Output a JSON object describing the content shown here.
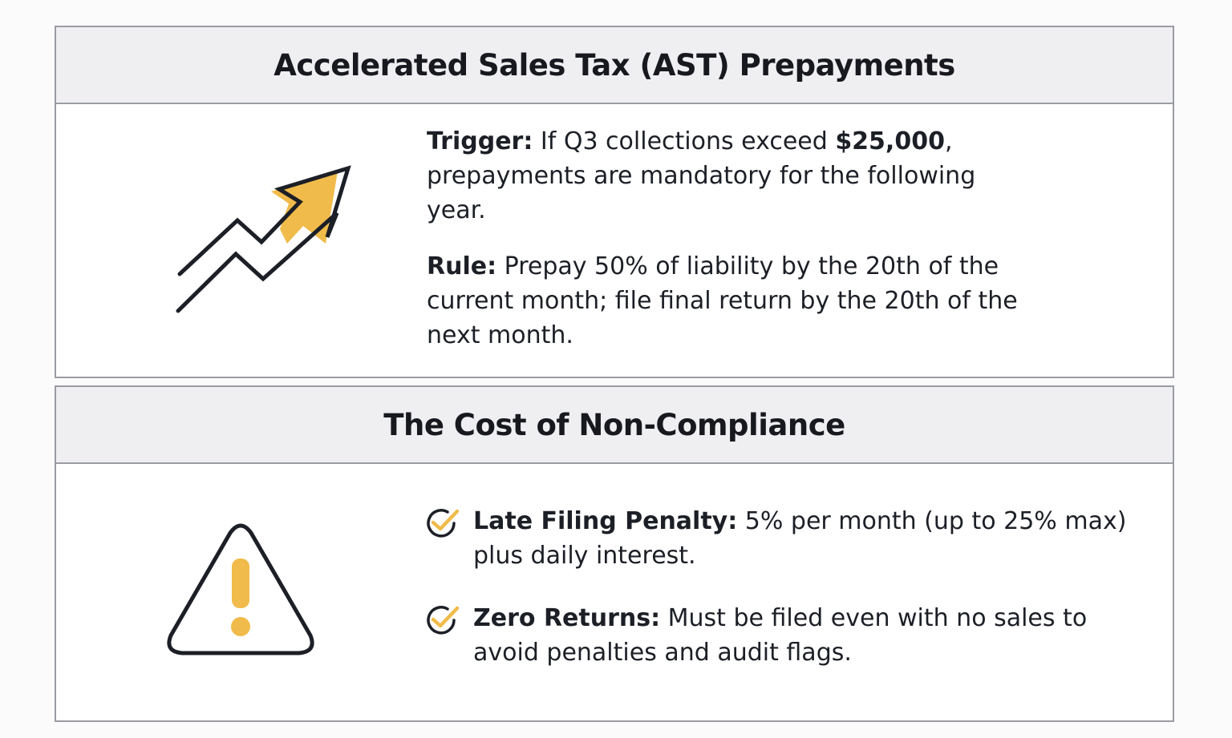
{
  "ast": {
    "title": "Accelerated Sales Tax (AST) Prepayments",
    "trigger_label": "Trigger:",
    "trigger_text_before": " If Q3 collections exceed ",
    "trigger_amount": "$25,000",
    "trigger_text_after": ", prepayments are mandatory for the following year.",
    "rule_label": "Rule:",
    "rule_text": " Prepay 50% of liability by the 20th of the current month; file final return by the 20th of the next month.",
    "icon": "trending-up-arrow-icon"
  },
  "cost": {
    "title": "The Cost of Non-Compliance",
    "icon": "warning-triangle-icon",
    "items": [
      {
        "label": "Late Filing Penalty:",
        "text": " 5% per month (up to 25% max) plus daily interest."
      },
      {
        "label": "Zero Returns:",
        "text": " Must be filed even with no sales to avoid penalties and audit flags."
      }
    ]
  },
  "colors": {
    "accent": "#f0bb4a",
    "ink": "#1c1f26",
    "header_bg": "#efeff2",
    "border": "#9a9ca3"
  }
}
